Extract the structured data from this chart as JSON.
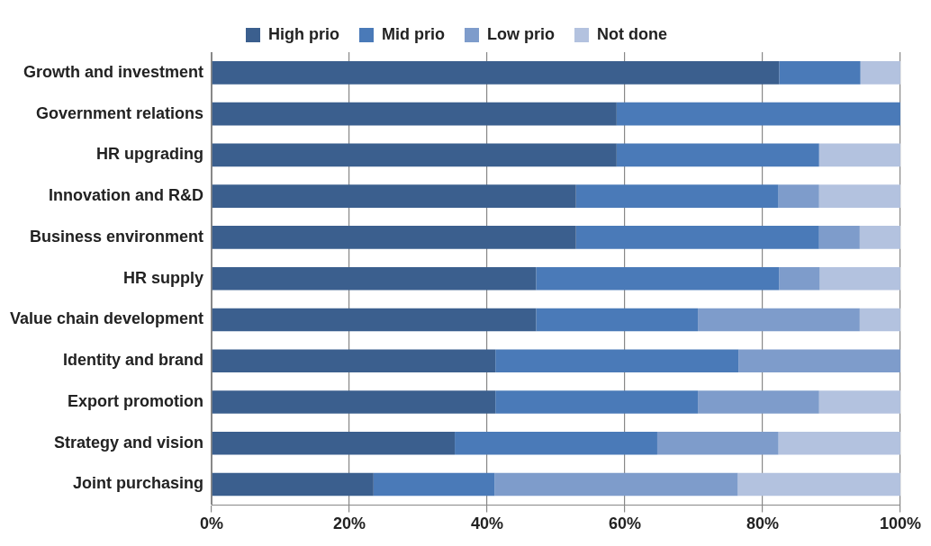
{
  "chart_data": {
    "type": "bar",
    "orientation": "horizontal",
    "stacked": true,
    "categories": [
      "Growth and investment",
      "Government relations",
      "HR upgrading",
      "Innovation and R&D",
      "Business environment",
      "HR supply",
      "Value chain development",
      "Identity and brand",
      "Export promotion",
      "Strategy and vision",
      "Joint purchasing"
    ],
    "series": [
      {
        "name": "High prio",
        "color": "#3b5f8e",
        "values": [
          82.4,
          58.8,
          58.8,
          52.9,
          52.9,
          47.1,
          47.1,
          41.2,
          41.2,
          35.3,
          23.5
        ]
      },
      {
        "name": "Mid prio",
        "color": "#4a7ab8",
        "values": [
          11.8,
          41.2,
          29.4,
          29.4,
          35.3,
          35.3,
          23.5,
          35.3,
          29.4,
          29.4,
          17.6
        ]
      },
      {
        "name": "Low prio",
        "color": "#7e9ccb",
        "values": [
          0,
          0,
          0,
          5.9,
          5.9,
          5.9,
          23.5,
          23.5,
          17.6,
          17.6,
          35.3
        ]
      },
      {
        "name": "Not done",
        "color": "#b3c2df",
        "values": [
          5.8,
          0,
          11.8,
          11.8,
          5.9,
          11.7,
          5.9,
          0,
          11.8,
          17.7,
          23.6
        ]
      }
    ],
    "xlim": [
      0,
      100
    ],
    "xticks": [
      {
        "value": 0,
        "label": "0%"
      },
      {
        "value": 20,
        "label": "20%"
      },
      {
        "value": 40,
        "label": "40%"
      },
      {
        "value": 60,
        "label": "60%"
      },
      {
        "value": 80,
        "label": "80%"
      },
      {
        "value": 100,
        "label": "100%"
      }
    ],
    "grid": "x",
    "legend": "top"
  }
}
